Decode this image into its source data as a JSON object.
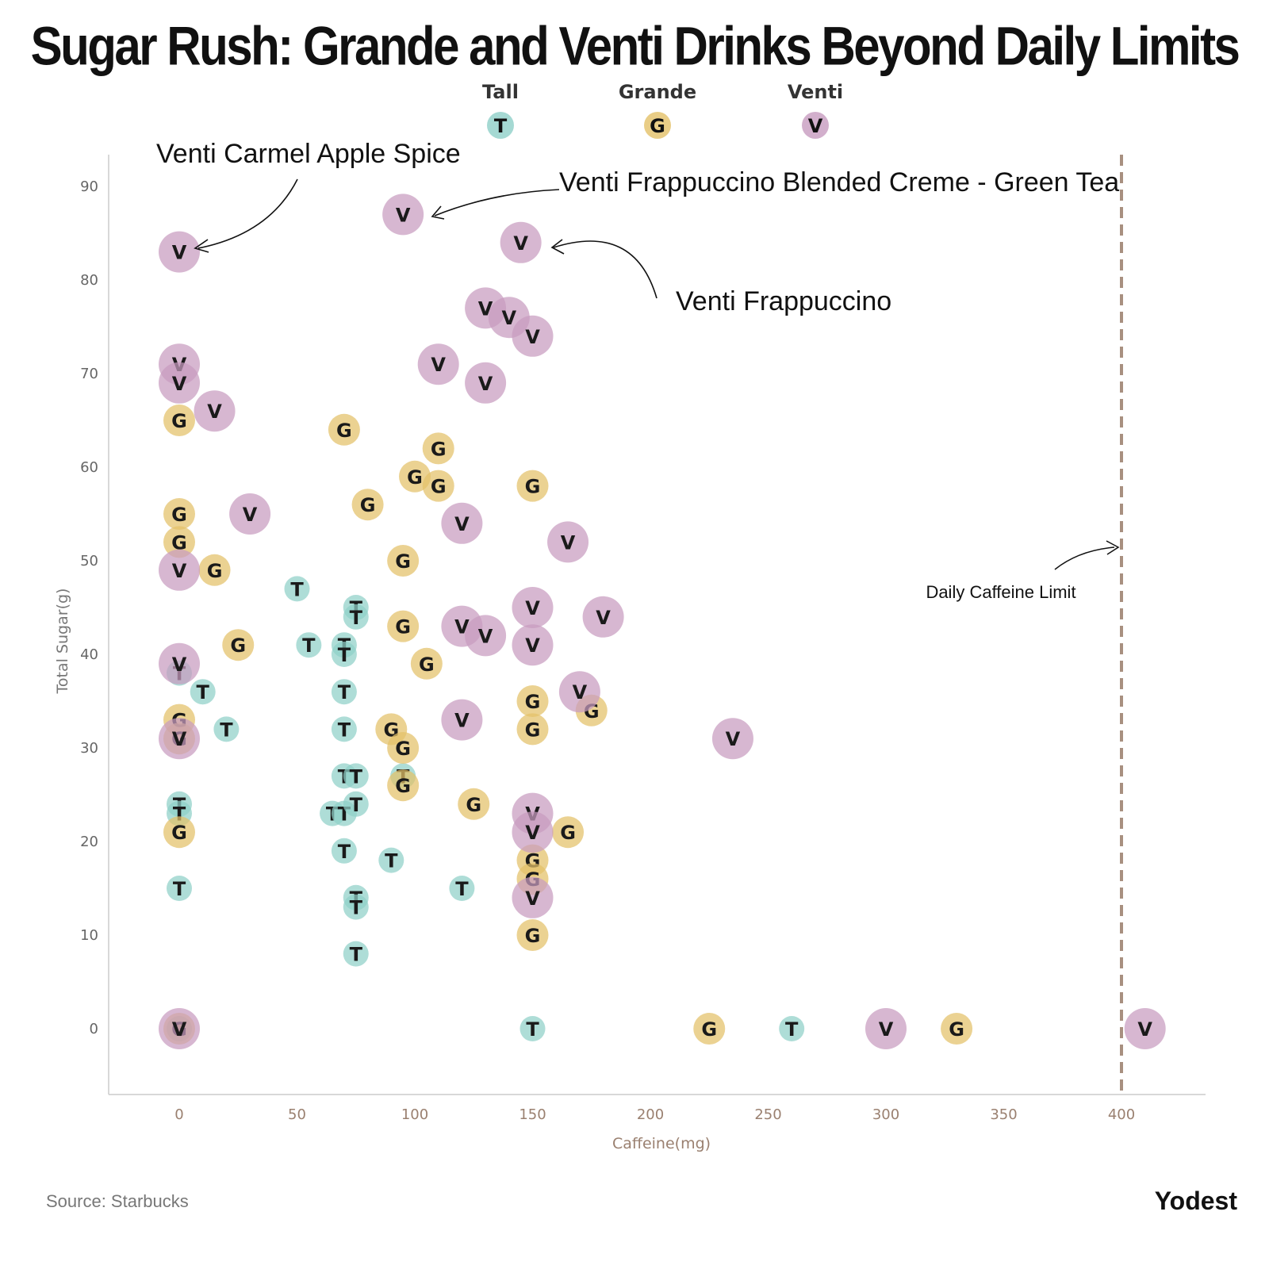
{
  "page": {
    "title": "Sugar Rush:  Grande and Venti Drinks Beyond Daily Limits",
    "source": "Source: Starbucks",
    "brand": "Yodest"
  },
  "chart_data": {
    "type": "scatter",
    "title": "Sugar Rush:  Grande and Venti Drinks Beyond Daily Limits",
    "xlabel": "Caffeine(mg)",
    "ylabel": "Total Sugar(g)",
    "xlim": [
      -30,
      435
    ],
    "ylim": [
      -7,
      93
    ],
    "x_ticks": [
      0,
      50,
      100,
      150,
      200,
      250,
      300,
      350,
      400
    ],
    "y_ticks": [
      0,
      10,
      20,
      30,
      40,
      50,
      60,
      70,
      80,
      90
    ],
    "grid": false,
    "legend_position": "top-center",
    "series": [
      {
        "name": "Tall",
        "marker": "T",
        "color": "#8fd0c8",
        "points": [
          [
            0,
            24
          ],
          [
            0,
            23
          ],
          [
            0,
            15
          ],
          [
            0,
            38
          ],
          [
            0,
            0
          ],
          [
            10,
            36
          ],
          [
            20,
            32
          ],
          [
            50,
            47
          ],
          [
            55,
            41
          ],
          [
            70,
            41
          ],
          [
            70,
            40
          ],
          [
            70,
            36
          ],
          [
            70,
            32
          ],
          [
            70,
            27
          ],
          [
            75,
            27
          ],
          [
            65,
            23
          ],
          [
            70,
            23
          ],
          [
            75,
            24
          ],
          [
            70,
            19
          ],
          [
            75,
            45
          ],
          [
            75,
            44
          ],
          [
            75,
            14
          ],
          [
            75,
            13
          ],
          [
            75,
            8
          ],
          [
            90,
            18
          ],
          [
            95,
            27
          ],
          [
            120,
            15
          ],
          [
            150,
            0
          ],
          [
            260,
            0
          ]
        ]
      },
      {
        "name": "Grande",
        "marker": "G",
        "color": "#e3c068",
        "points": [
          [
            0,
            65
          ],
          [
            0,
            55
          ],
          [
            0,
            52
          ],
          [
            0,
            33
          ],
          [
            0,
            31
          ],
          [
            0,
            21
          ],
          [
            0,
            0
          ],
          [
            15,
            49
          ],
          [
            25,
            41
          ],
          [
            70,
            64
          ],
          [
            80,
            56
          ],
          [
            95,
            50
          ],
          [
            95,
            43
          ],
          [
            90,
            32
          ],
          [
            95,
            30
          ],
          [
            95,
            26
          ],
          [
            100,
            59
          ],
          [
            110,
            62
          ],
          [
            110,
            58
          ],
          [
            105,
            39
          ],
          [
            125,
            24
          ],
          [
            150,
            58
          ],
          [
            150,
            35
          ],
          [
            150,
            32
          ],
          [
            150,
            18
          ],
          [
            150,
            16
          ],
          [
            150,
            10
          ],
          [
            165,
            21
          ],
          [
            175,
            34
          ],
          [
            225,
            0
          ],
          [
            330,
            0
          ]
        ]
      },
      {
        "name": "Venti",
        "marker": "V",
        "color": "#c79bbf",
        "points": [
          [
            0,
            83
          ],
          [
            0,
            71
          ],
          [
            0,
            69
          ],
          [
            0,
            49
          ],
          [
            0,
            39
          ],
          [
            0,
            31
          ],
          [
            0,
            0
          ],
          [
            15,
            66
          ],
          [
            30,
            55
          ],
          [
            95,
            87
          ],
          [
            145,
            84
          ],
          [
            130,
            77
          ],
          [
            140,
            76
          ],
          [
            150,
            74
          ],
          [
            110,
            71
          ],
          [
            130,
            69
          ],
          [
            120,
            54
          ],
          [
            165,
            52
          ],
          [
            120,
            43
          ],
          [
            130,
            42
          ],
          [
            150,
            45
          ],
          [
            150,
            41
          ],
          [
            180,
            44
          ],
          [
            170,
            36
          ],
          [
            120,
            33
          ],
          [
            150,
            23
          ],
          [
            150,
            21
          ],
          [
            150,
            14
          ],
          [
            235,
            31
          ],
          [
            300,
            0
          ],
          [
            410,
            0
          ]
        ]
      }
    ],
    "reference_line": {
      "x": 400,
      "label": "Daily Caffeine Limit",
      "color": "#a89080"
    },
    "annotations": [
      {
        "text": "Venti Carmel Apple Spice",
        "points_to": [
          0,
          83
        ]
      },
      {
        "text": "Venti Frappuccino Blended Creme - Green Tea",
        "points_to": [
          95,
          87
        ]
      },
      {
        "text": "Venti Frappuccino",
        "points_to": [
          145,
          84
        ]
      }
    ]
  }
}
